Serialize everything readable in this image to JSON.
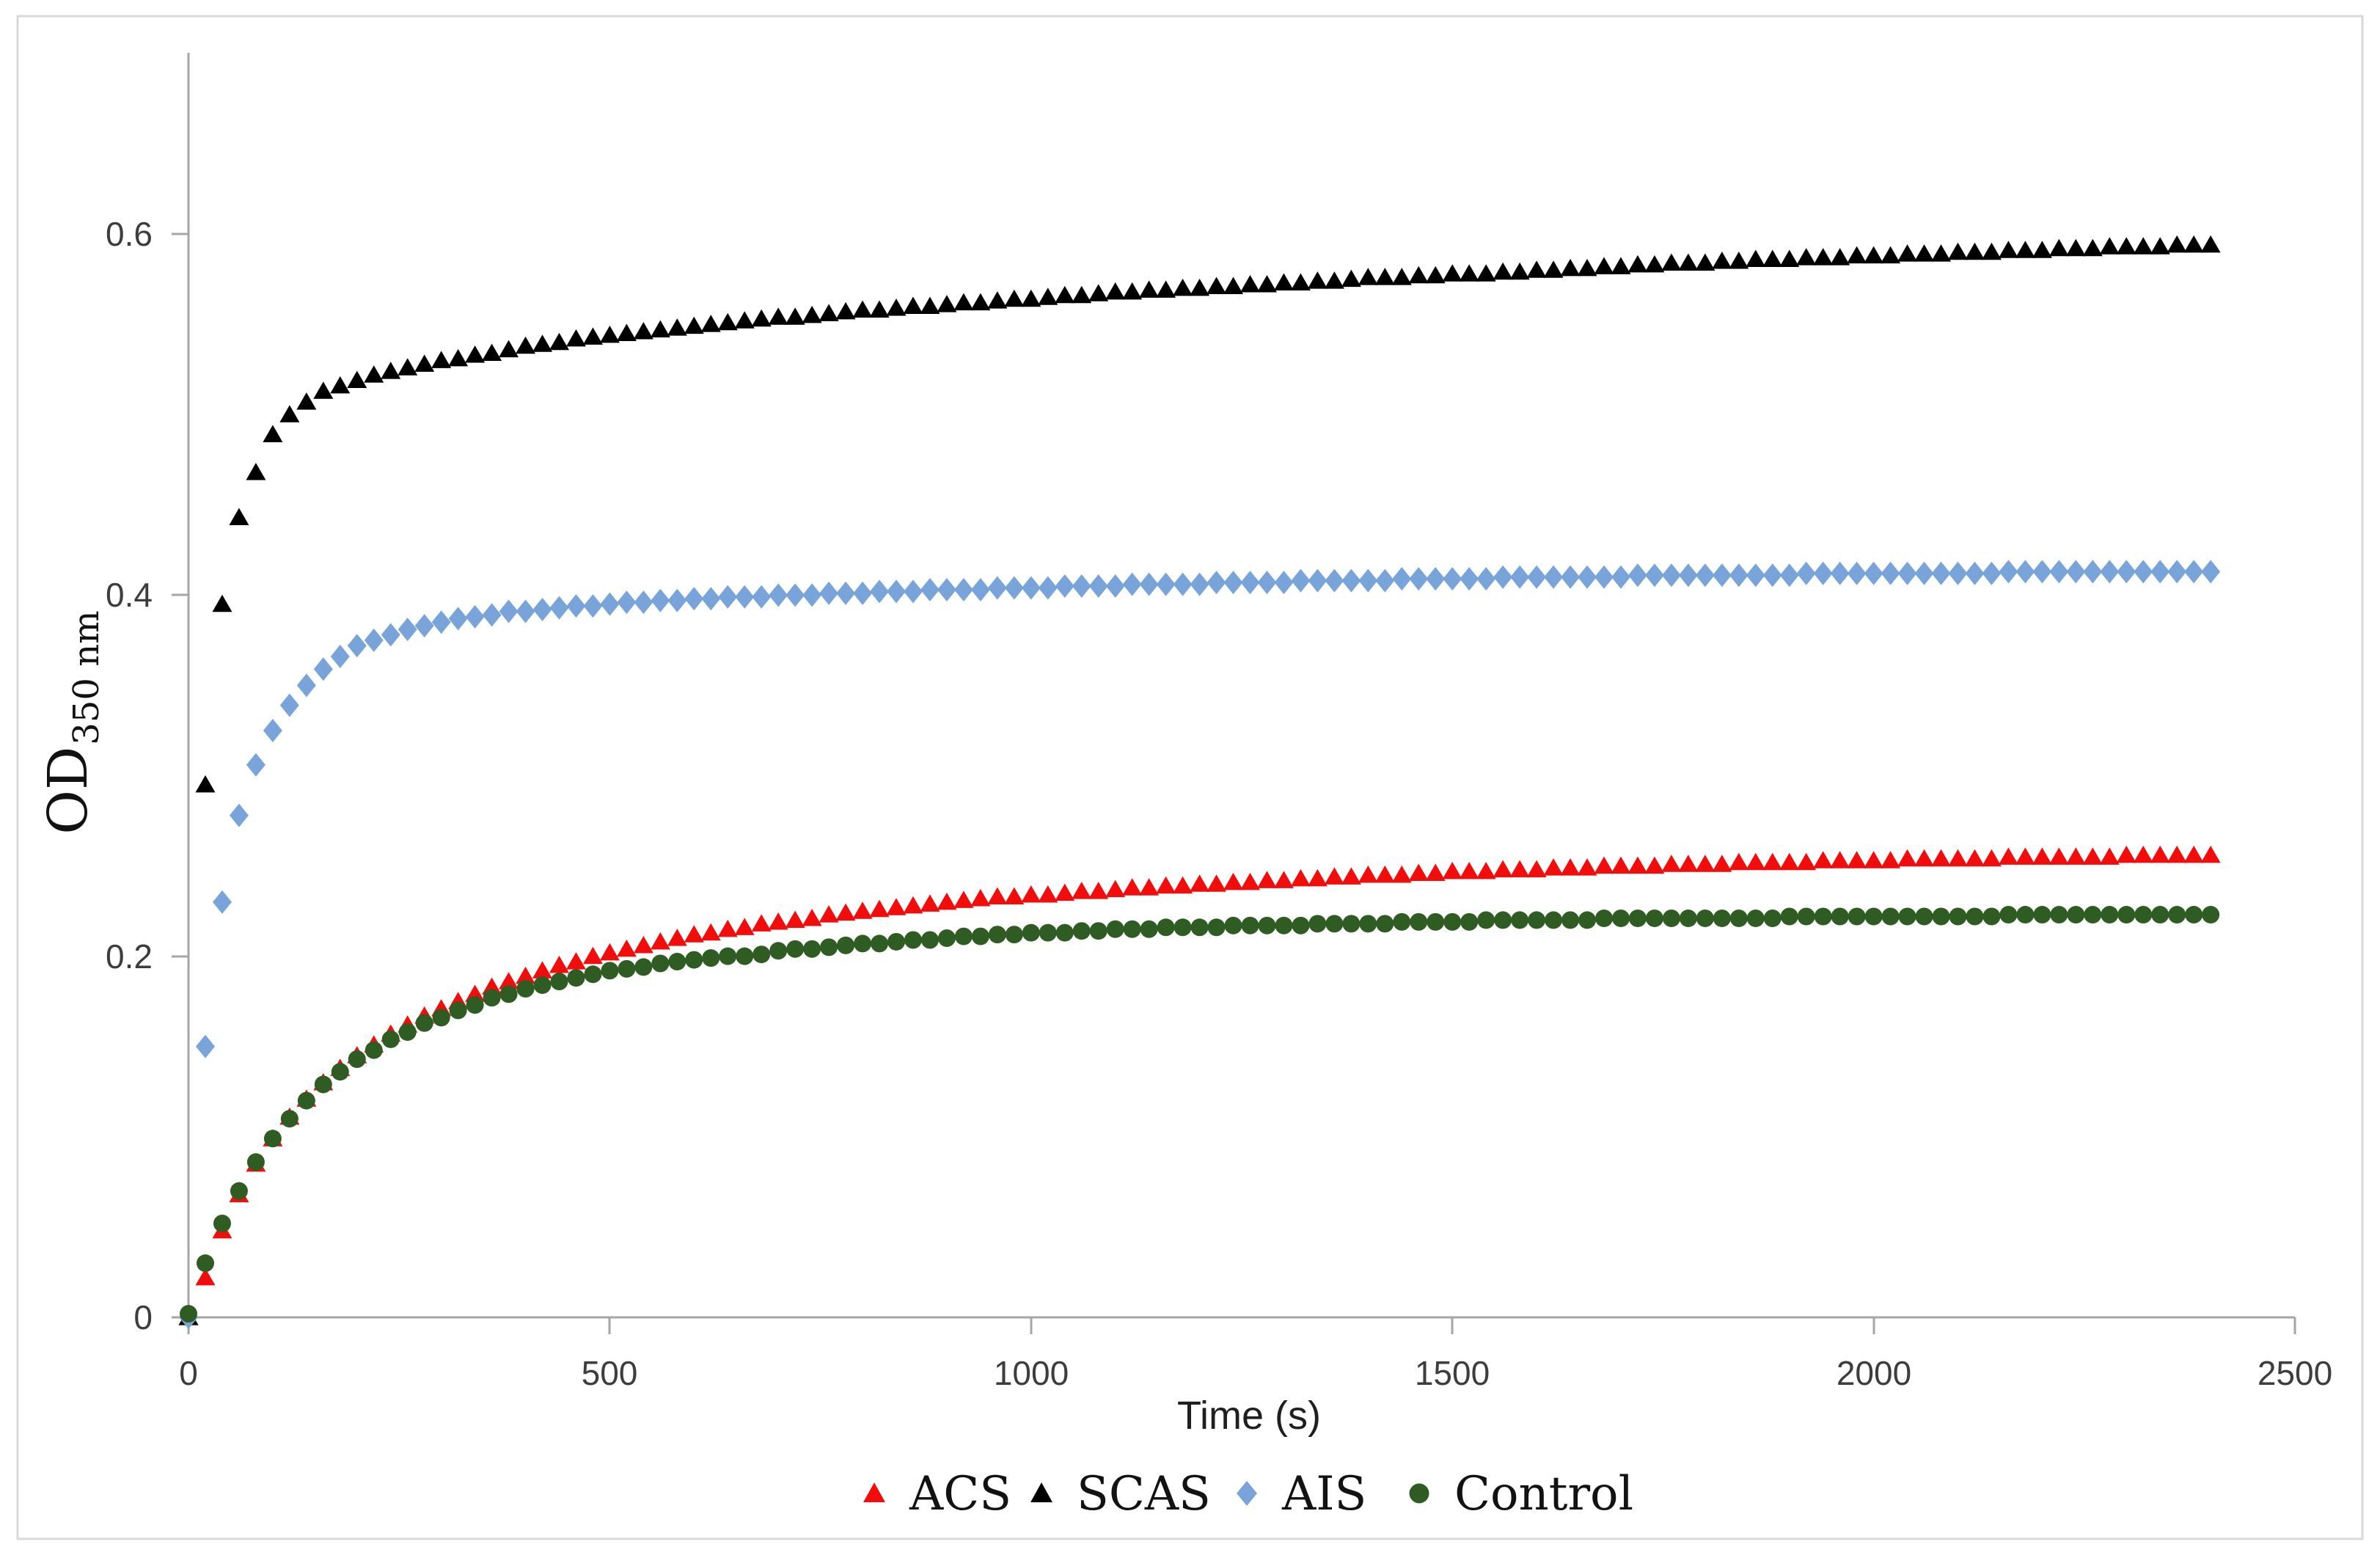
{
  "figure": {
    "background": "#ffffff",
    "border_color": "#d9d9d9"
  },
  "chart_data": {
    "type": "scatter",
    "title": "",
    "xlabel": "Time (s)",
    "ylabel": "OD",
    "ylabel_subscript": "350 nm",
    "xlim": [
      0,
      2500
    ],
    "ylim": [
      0,
      0.7
    ],
    "x_ticks": [
      0,
      500,
      1000,
      1500,
      2000,
      2500
    ],
    "x_tick_labels": [
      "0",
      "500",
      "1000",
      "1500",
      "2000",
      "2500"
    ],
    "y_ticks": [
      0,
      0.2,
      0.4,
      0.6
    ],
    "y_tick_labels": [
      "0",
      "0.2",
      "0.4",
      "0.6"
    ],
    "grid": false,
    "legend_position": "bottom-center",
    "axis_color": "#a6a6a6",
    "tick_label_color": "#3d3d3d",
    "sample_interval_s": 20,
    "x": [
      0,
      20,
      40,
      60,
      80,
      100,
      120,
      140,
      160,
      180,
      200,
      220,
      240,
      260,
      280,
      300,
      320,
      340,
      360,
      380,
      400,
      420,
      440,
      460,
      480,
      500,
      520,
      540,
      560,
      580,
      600,
      620,
      640,
      660,
      680,
      700,
      720,
      740,
      760,
      780,
      800,
      820,
      840,
      860,
      880,
      900,
      920,
      940,
      960,
      980,
      1000,
      1020,
      1040,
      1060,
      1080,
      1100,
      1120,
      1140,
      1160,
      1180,
      1200,
      1220,
      1240,
      1260,
      1280,
      1300,
      1320,
      1340,
      1360,
      1380,
      1400,
      1420,
      1440,
      1460,
      1480,
      1500,
      1520,
      1540,
      1560,
      1580,
      1600,
      1620,
      1640,
      1660,
      1680,
      1700,
      1720,
      1740,
      1760,
      1780,
      1800,
      1820,
      1840,
      1860,
      1880,
      1900,
      1920,
      1940,
      1960,
      1980,
      2000,
      2020,
      2040,
      2060,
      2080,
      2100,
      2120,
      2140,
      2160,
      2180,
      2200,
      2220,
      2240,
      2260,
      2280,
      2300,
      2320,
      2340,
      2360,
      2380,
      2400
    ],
    "series": [
      {
        "name": "ACS",
        "marker": "triangle",
        "color": "#f20d0d",
        "values": [
          0,
          0.022,
          0.048,
          0.068,
          0.085,
          0.099,
          0.111,
          0.121,
          0.13,
          0.138,
          0.145,
          0.151,
          0.157,
          0.162,
          0.167,
          0.171,
          0.175,
          0.179,
          0.183,
          0.186,
          0.189,
          0.192,
          0.195,
          0.197,
          0.2,
          0.202,
          0.204,
          0.206,
          0.208,
          0.21,
          0.212,
          0.213,
          0.215,
          0.216,
          0.218,
          0.219,
          0.22,
          0.221,
          0.223,
          0.224,
          0.225,
          0.226,
          0.227,
          0.228,
          0.229,
          0.23,
          0.231,
          0.232,
          0.233,
          0.233,
          0.234,
          0.234,
          0.235,
          0.236,
          0.236,
          0.237,
          0.238,
          0.238,
          0.239,
          0.239,
          0.24,
          0.24,
          0.241,
          0.241,
          0.242,
          0.242,
          0.243,
          0.243,
          0.244,
          0.244,
          0.245,
          0.245,
          0.245,
          0.246,
          0.246,
          0.247,
          0.247,
          0.247,
          0.248,
          0.248,
          0.248,
          0.249,
          0.249,
          0.249,
          0.25,
          0.25,
          0.25,
          0.25,
          0.251,
          0.251,
          0.251,
          0.251,
          0.252,
          0.252,
          0.252,
          0.252,
          0.252,
          0.253,
          0.253,
          0.253,
          0.253,
          0.253,
          0.254,
          0.254,
          0.254,
          0.254,
          0.254,
          0.254,
          0.255,
          0.255,
          0.255,
          0.255,
          0.255,
          0.255,
          0.255,
          0.256,
          0.256,
          0.256,
          0.256,
          0.256,
          0.256
        ]
      },
      {
        "name": "SCAS",
        "marker": "triangle",
        "color": "#000000",
        "values": [
          0,
          0.295,
          0.395,
          0.443,
          0.468,
          0.489,
          0.5,
          0.507,
          0.513,
          0.516,
          0.519,
          0.522,
          0.524,
          0.526,
          0.528,
          0.53,
          0.531,
          0.533,
          0.534,
          0.536,
          0.538,
          0.539,
          0.54,
          0.542,
          0.543,
          0.544,
          0.545,
          0.546,
          0.547,
          0.548,
          0.549,
          0.55,
          0.551,
          0.552,
          0.553,
          0.554,
          0.554,
          0.555,
          0.556,
          0.557,
          0.558,
          0.558,
          0.559,
          0.56,
          0.56,
          0.561,
          0.562,
          0.562,
          0.563,
          0.564,
          0.564,
          0.565,
          0.566,
          0.566,
          0.567,
          0.568,
          0.568,
          0.569,
          0.569,
          0.57,
          0.57,
          0.571,
          0.571,
          0.572,
          0.572,
          0.573,
          0.573,
          0.574,
          0.574,
          0.575,
          0.576,
          0.576,
          0.576,
          0.577,
          0.577,
          0.578,
          0.578,
          0.578,
          0.579,
          0.579,
          0.58,
          0.58,
          0.581,
          0.581,
          0.582,
          0.582,
          0.583,
          0.583,
          0.584,
          0.584,
          0.584,
          0.585,
          0.585,
          0.586,
          0.586,
          0.586,
          0.587,
          0.587,
          0.587,
          0.588,
          0.588,
          0.588,
          0.589,
          0.589,
          0.589,
          0.59,
          0.59,
          0.59,
          0.591,
          0.591,
          0.591,
          0.592,
          0.592,
          0.592,
          0.593,
          0.593,
          0.593,
          0.593,
          0.594,
          0.594,
          0.594
        ]
      },
      {
        "name": "AIS",
        "marker": "diamond",
        "color": "#78a4d9",
        "values": [
          0,
          0.15,
          0.23,
          0.278,
          0.306,
          0.325,
          0.339,
          0.35,
          0.359,
          0.366,
          0.372,
          0.375,
          0.378,
          0.381,
          0.383,
          0.385,
          0.387,
          0.388,
          0.389,
          0.391,
          0.391,
          0.392,
          0.393,
          0.394,
          0.394,
          0.395,
          0.396,
          0.396,
          0.397,
          0.397,
          0.398,
          0.398,
          0.399,
          0.399,
          0.399,
          0.4,
          0.4,
          0.4,
          0.401,
          0.401,
          0.401,
          0.402,
          0.402,
          0.402,
          0.403,
          0.403,
          0.403,
          0.403,
          0.404,
          0.404,
          0.404,
          0.404,
          0.405,
          0.405,
          0.405,
          0.405,
          0.406,
          0.406,
          0.406,
          0.406,
          0.406,
          0.407,
          0.407,
          0.407,
          0.407,
          0.407,
          0.408,
          0.408,
          0.408,
          0.408,
          0.408,
          0.408,
          0.409,
          0.409,
          0.409,
          0.409,
          0.409,
          0.409,
          0.41,
          0.41,
          0.41,
          0.41,
          0.41,
          0.41,
          0.41,
          0.41,
          0.411,
          0.411,
          0.411,
          0.411,
          0.411,
          0.411,
          0.411,
          0.411,
          0.411,
          0.411,
          0.412,
          0.412,
          0.412,
          0.412,
          0.412,
          0.412,
          0.412,
          0.412,
          0.412,
          0.412,
          0.412,
          0.412,
          0.413,
          0.413,
          0.413,
          0.413,
          0.413,
          0.413,
          0.413,
          0.413,
          0.413,
          0.413,
          0.413,
          0.413,
          0.413
        ]
      },
      {
        "name": "Control",
        "marker": "circle",
        "color": "#2f5c23",
        "values": [
          0.002,
          0.03,
          0.052,
          0.07,
          0.086,
          0.099,
          0.11,
          0.12,
          0.129,
          0.136,
          0.143,
          0.148,
          0.154,
          0.158,
          0.163,
          0.166,
          0.17,
          0.173,
          0.177,
          0.179,
          0.182,
          0.184,
          0.186,
          0.188,
          0.19,
          0.192,
          0.193,
          0.194,
          0.196,
          0.197,
          0.198,
          0.199,
          0.2,
          0.2,
          0.201,
          0.203,
          0.204,
          0.204,
          0.205,
          0.206,
          0.207,
          0.207,
          0.208,
          0.209,
          0.209,
          0.21,
          0.211,
          0.211,
          0.212,
          0.212,
          0.213,
          0.213,
          0.213,
          0.214,
          0.214,
          0.215,
          0.215,
          0.215,
          0.216,
          0.216,
          0.216,
          0.216,
          0.217,
          0.217,
          0.217,
          0.217,
          0.217,
          0.218,
          0.218,
          0.218,
          0.218,
          0.218,
          0.219,
          0.219,
          0.219,
          0.219,
          0.219,
          0.22,
          0.22,
          0.22,
          0.22,
          0.22,
          0.22,
          0.22,
          0.221,
          0.221,
          0.221,
          0.221,
          0.221,
          0.221,
          0.221,
          0.221,
          0.221,
          0.221,
          0.221,
          0.222,
          0.222,
          0.222,
          0.222,
          0.222,
          0.222,
          0.222,
          0.222,
          0.222,
          0.222,
          0.222,
          0.222,
          0.222,
          0.223,
          0.223,
          0.223,
          0.223,
          0.223,
          0.223,
          0.223,
          0.223,
          0.223,
          0.223,
          0.223,
          0.223,
          0.223
        ]
      }
    ]
  }
}
